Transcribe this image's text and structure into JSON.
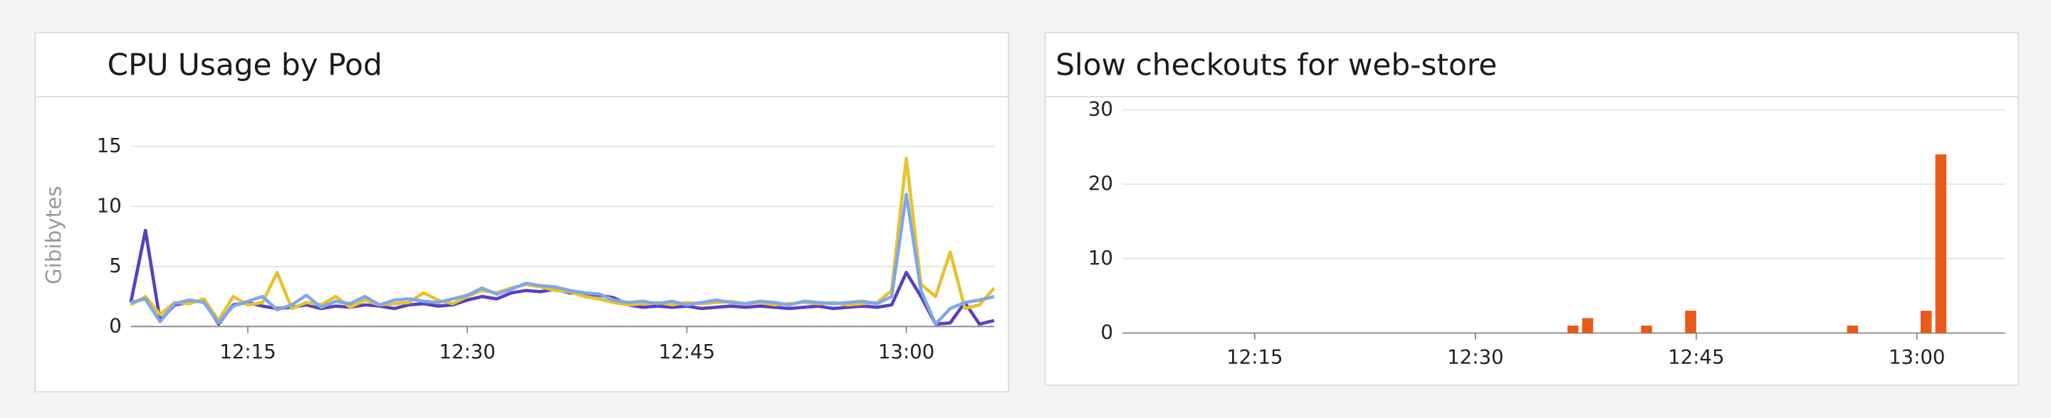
{
  "chart_data": [
    {
      "type": "line",
      "title": "CPU Usage by Pod",
      "y_label": "Gibibytes",
      "x": [
        "12:07",
        "12:08",
        "12:09",
        "12:10",
        "12:11",
        "12:12",
        "12:13",
        "12:14",
        "12:15",
        "12:16",
        "12:17",
        "12:18",
        "12:19",
        "12:20",
        "12:21",
        "12:22",
        "12:23",
        "12:24",
        "12:25",
        "12:26",
        "12:27",
        "12:28",
        "12:29",
        "12:30",
        "12:31",
        "12:32",
        "12:33",
        "12:34",
        "12:35",
        "12:36",
        "12:37",
        "12:38",
        "12:39",
        "12:40",
        "12:41",
        "12:42",
        "12:43",
        "12:44",
        "12:45",
        "12:46",
        "12:47",
        "12:48",
        "12:49",
        "12:50",
        "12:51",
        "12:52",
        "12:53",
        "12:54",
        "12:55",
        "12:56",
        "12:57",
        "12:58",
        "12:59",
        "13:00",
        "13:01",
        "13:02",
        "13:03",
        "13:04",
        "13:05",
        "13:06"
      ],
      "series": [
        {
          "color": "#5b3fc1",
          "values": [
            2,
            8,
            0.5,
            1.8,
            2,
            2.2,
            0.2,
            1.8,
            2,
            1.7,
            1.5,
            1.6,
            1.8,
            1.5,
            1.7,
            1.6,
            1.8,
            1.7,
            1.5,
            1.8,
            1.9,
            1.7,
            1.8,
            2.2,
            2.5,
            2.3,
            2.8,
            3,
            2.9,
            3.1,
            2.8,
            2.7,
            2.6,
            2.4,
            1.8,
            1.6,
            1.7,
            1.6,
            1.7,
            1.5,
            1.6,
            1.7,
            1.6,
            1.7,
            1.6,
            1.5,
            1.6,
            1.7,
            1.5,
            1.6,
            1.7,
            1.6,
            1.8,
            4.5,
            2.5,
            0.2,
            0.3,
            2,
            0.2,
            0.5
          ]
        },
        {
          "color": "#e9c12c",
          "values": [
            1.8,
            2.5,
            1,
            2,
            1.9,
            2.3,
            0.5,
            2.5,
            1.8,
            2,
            4.5,
            1.5,
            2,
            1.8,
            2.5,
            1.6,
            2.2,
            1.8,
            1.9,
            2,
            2.8,
            2.2,
            1.9,
            2.5,
            3,
            2.8,
            3.2,
            3.5,
            3.3,
            3,
            2.9,
            2.5,
            2.3,
            2,
            1.8,
            1.9,
            2,
            1.8,
            2,
            1.9,
            2,
            2.1,
            1.9,
            2,
            1.8,
            1.9,
            2,
            1.9,
            2,
            1.8,
            1.9,
            2,
            3,
            14,
            3.5,
            2.5,
            6.2,
            1.5,
            1.8,
            3.2
          ]
        },
        {
          "color": "#7ba8ea",
          "values": [
            2,
            2.3,
            0.4,
            1.9,
            2.2,
            2,
            0.3,
            1.7,
            2.1,
            2.5,
            1.4,
            1.8,
            2.6,
            1.6,
            2.1,
            1.9,
            2.5,
            1.8,
            2.2,
            2.3,
            2.1,
            2,
            2.3,
            2.6,
            3.2,
            2.7,
            3.1,
            3.6,
            3.4,
            3.3,
            3,
            2.8,
            2.7,
            2.2,
            2,
            2.1,
            1.9,
            2.1,
            1.8,
            2,
            2.2,
            2,
            1.9,
            2.1,
            2,
            1.8,
            2.1,
            2,
            1.9,
            2,
            2.1,
            1.9,
            2.5,
            11,
            3,
            0.2,
            1.5,
            2,
            2.2,
            2.5
          ]
        }
      ],
      "xlim": [
        "12:07",
        "13:06"
      ],
      "xticks": [
        "12:15",
        "12:30",
        "12:45",
        "13:00"
      ],
      "ylim": [
        0,
        17
      ],
      "yticks": [
        0,
        5,
        10,
        15
      ],
      "grid": true
    },
    {
      "type": "bar",
      "title": "Slow checkouts for web-store",
      "x": [
        "12:37",
        "12:38",
        "12:42",
        "12:45",
        "12:56",
        "13:01",
        "13:02"
      ],
      "values": [
        1,
        2,
        1,
        3,
        1,
        3,
        24
      ],
      "color": "#e8591a",
      "xlim": [
        "12:06",
        "13:06"
      ],
      "xticks": [
        "12:15",
        "12:30",
        "12:45",
        "13:00"
      ],
      "ylim": [
        0,
        30
      ],
      "yticks": [
        0,
        10,
        20,
        30
      ],
      "grid": true
    }
  ]
}
